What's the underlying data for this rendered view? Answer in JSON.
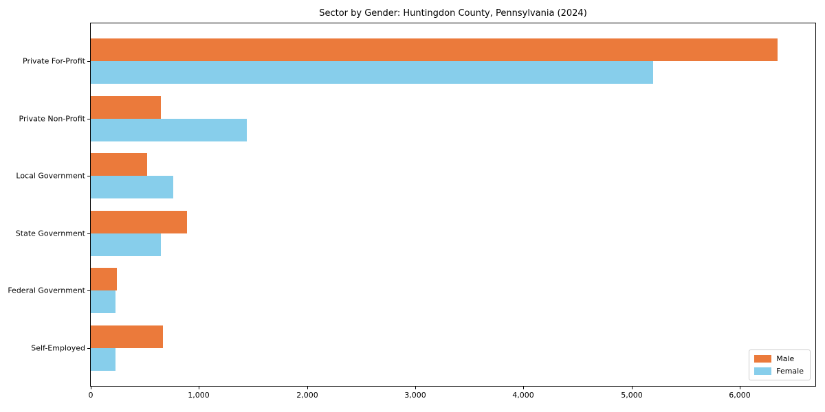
{
  "chart_data": {
    "type": "bar",
    "orientation": "horizontal",
    "title": "Sector by Gender: Huntingdon County, Pennsylvania (2024)",
    "categories": [
      "Private For-Profit",
      "Private Non-Profit",
      "Local Government",
      "State Government",
      "Federal Government",
      "Self-Employed"
    ],
    "series": [
      {
        "name": "Male",
        "color": "#eb7a3b",
        "values": [
          6350,
          650,
          520,
          890,
          240,
          670
        ]
      },
      {
        "name": "Female",
        "color": "#87ceeb",
        "values": [
          5200,
          1440,
          760,
          650,
          230,
          230
        ]
      }
    ],
    "xlabel": "",
    "ylabel": "",
    "xlim": [
      0,
      6700
    ],
    "xticks": {
      "values": [
        0,
        1000,
        2000,
        3000,
        4000,
        5000,
        6000
      ],
      "labels": [
        "0",
        "1,000",
        "2,000",
        "3,000",
        "4,000",
        "5,000",
        "6,000"
      ]
    },
    "grid": false,
    "legend": {
      "position": "lower right"
    }
  }
}
